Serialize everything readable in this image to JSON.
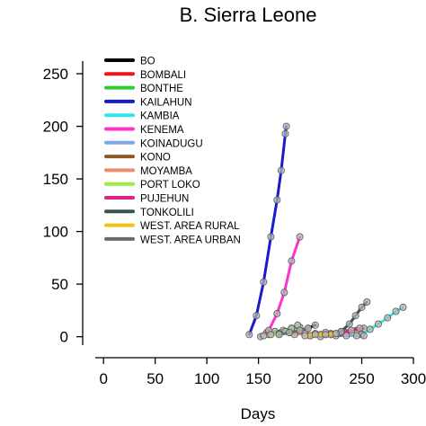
{
  "chart_data": {
    "type": "line",
    "title": "B. Sierra Leone",
    "xlabel": "Days",
    "ylabel": "",
    "xlim": [
      -8,
      300
    ],
    "ylim": [
      -8,
      262
    ],
    "xticks": [
      0,
      50,
      100,
      150,
      200,
      250,
      300
    ],
    "yticks": [
      0,
      50,
      100,
      150,
      200,
      250
    ],
    "grid": false,
    "legend": "top-left",
    "series": [
      {
        "name": "BO",
        "color": "#000000",
        "points": [
          [
            160,
            2
          ],
          [
            170,
            3
          ],
          [
            180,
            4
          ],
          [
            190,
            5
          ],
          [
            198,
            8
          ],
          [
            205,
            11
          ]
        ]
      },
      {
        "name": "BOMBALI",
        "color": "#e8171d",
        "points": [
          [
            215,
            2
          ],
          [
            225,
            3
          ],
          [
            235,
            4
          ],
          [
            245,
            6
          ],
          [
            252,
            8
          ]
        ]
      },
      {
        "name": "BONTHE",
        "color": "#33cc33",
        "points": [
          [
            158,
            4
          ],
          [
            166,
            5
          ],
          [
            174,
            6
          ],
          [
            182,
            8
          ],
          [
            190,
            9
          ]
        ]
      },
      {
        "name": "KAILAHUN",
        "color": "#1a1acc",
        "points": [
          [
            141,
            2
          ],
          [
            148,
            20
          ],
          [
            155,
            52
          ],
          [
            162,
            95
          ],
          [
            168,
            130
          ],
          [
            172,
            158
          ],
          [
            176,
            193
          ],
          [
            177,
            200
          ]
        ]
      },
      {
        "name": "KAMBIA",
        "color": "#33e6e6",
        "points": [
          [
            250,
            2
          ],
          [
            258,
            7
          ],
          [
            266,
            12
          ],
          [
            275,
            18
          ],
          [
            283,
            24
          ],
          [
            290,
            28
          ]
        ]
      },
      {
        "name": "KENEMA",
        "color": "#ff33cc",
        "points": [
          [
            152,
            0
          ],
          [
            160,
            6
          ],
          [
            168,
            22
          ],
          [
            175,
            42
          ],
          [
            182,
            72
          ],
          [
            190,
            95
          ]
        ]
      },
      {
        "name": "KOINADUGU",
        "color": "#7fa6e6",
        "points": [
          [
            225,
            1
          ],
          [
            235,
            1
          ],
          [
            245,
            1
          ],
          [
            252,
            1
          ]
        ]
      },
      {
        "name": "KONO",
        "color": "#8b5a2b",
        "points": [
          [
            200,
            1
          ],
          [
            210,
            2
          ],
          [
            220,
            2
          ],
          [
            228,
            3
          ]
        ]
      },
      {
        "name": "MOYAMBA",
        "color": "#f08c6e",
        "points": [
          [
            185,
            2
          ],
          [
            195,
            3
          ],
          [
            205,
            3
          ],
          [
            215,
            4
          ]
        ]
      },
      {
        "name": "PORT LOKO",
        "color": "#99ee44",
        "points": [
          [
            155,
            1
          ],
          [
            162,
            2
          ],
          [
            170,
            3
          ],
          [
            176,
            5
          ],
          [
            182,
            8
          ],
          [
            188,
            11
          ]
        ]
      },
      {
        "name": "PUJEHUN",
        "color": "#dd2288",
        "points": [
          [
            200,
            1
          ],
          [
            210,
            2
          ],
          [
            220,
            3
          ],
          [
            230,
            4
          ],
          [
            240,
            6
          ],
          [
            248,
            8
          ]
        ]
      },
      {
        "name": "TONKOLILI",
        "color": "#335555",
        "points": [
          [
            210,
            0
          ],
          [
            220,
            2
          ],
          [
            230,
            5
          ],
          [
            238,
            12
          ],
          [
            244,
            20
          ],
          [
            250,
            28
          ],
          [
            255,
            33
          ]
        ]
      },
      {
        "name": "WEST. AREA RURAL",
        "color": "#f2c218",
        "points": [
          [
            195,
            1
          ],
          [
            205,
            2
          ],
          [
            215,
            2
          ],
          [
            225,
            3
          ]
        ]
      },
      {
        "name": "WEST. AREA URBAN",
        "color": "#6b6b6b",
        "points": [
          [
            170,
            2
          ],
          [
            180,
            4
          ],
          [
            190,
            6
          ],
          [
            198,
            8
          ]
        ]
      }
    ]
  }
}
